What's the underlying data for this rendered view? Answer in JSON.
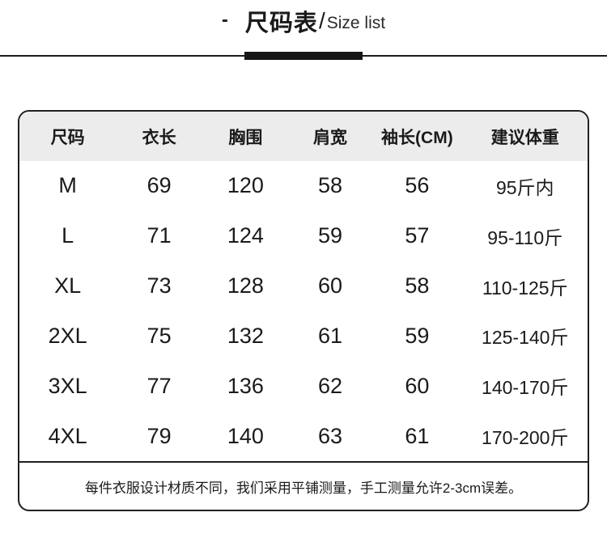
{
  "title": {
    "dash": "-",
    "zh": "尺码表",
    "slash": "/",
    "en": "Size list"
  },
  "table": {
    "headers": [
      "尺码",
      "衣长",
      "胸围",
      "肩宽",
      "袖长(CM)",
      "建议体重"
    ],
    "rows": [
      [
        "M",
        "69",
        "120",
        "58",
        "56",
        "95斤内"
      ],
      [
        "L",
        "71",
        "124",
        "59",
        "57",
        "95-110斤"
      ],
      [
        "XL",
        "73",
        "128",
        "60",
        "58",
        "110-125斤"
      ],
      [
        "2XL",
        "75",
        "132",
        "61",
        "59",
        "125-140斤"
      ],
      [
        "3XL",
        "77",
        "136",
        "62",
        "60",
        "140-170斤"
      ],
      [
        "4XL",
        "79",
        "140",
        "63",
        "61",
        "170-200斤"
      ]
    ],
    "note": "每件衣服设计材质不同，我们采用平铺测量，手工测量允许2-3cm误差。"
  },
  "colors": {
    "text": "#1a1a1a",
    "header_bg": "#ececec",
    "border": "#202020",
    "page_bg": "#ffffff"
  }
}
